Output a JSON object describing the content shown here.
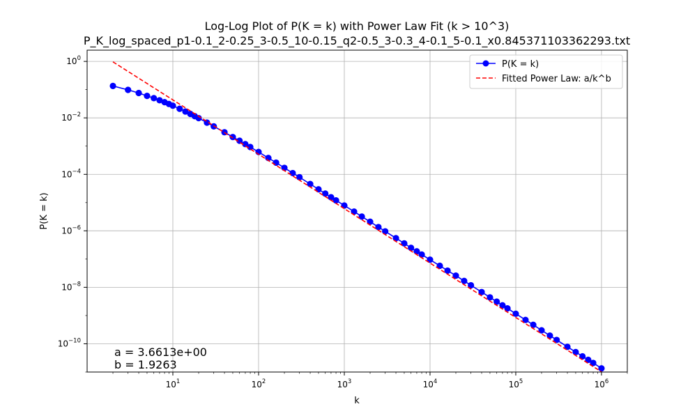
{
  "chart_data": {
    "type": "line",
    "title": "Log-Log Plot of P(K = k) with Power Law Fit (k > 10^3)",
    "subtitle": "P_K_log_spaced_p1-0.1_2-0.25_3-0.5_10-0.15_q2-0.5_3-0.3_4-0.1_5-0.1_x0.845371103362293.txt",
    "xlabel": "k",
    "ylabel": "P(K = k)",
    "xscale": "log",
    "yscale": "log",
    "xlim": [
      1.0,
      2000000
    ],
    "ylim": [
      1e-11,
      2.5
    ],
    "x_ticks": [
      {
        "base": "10",
        "exp": "1"
      },
      {
        "base": "10",
        "exp": "2"
      },
      {
        "base": "10",
        "exp": "3"
      },
      {
        "base": "10",
        "exp": "4"
      },
      {
        "base": "10",
        "exp": "5"
      },
      {
        "base": "10",
        "exp": "6"
      }
    ],
    "x_tick_values": [
      10,
      100,
      1000,
      10000,
      100000,
      1000000
    ],
    "y_ticks": [
      {
        "base": "10",
        "exp": "−10"
      },
      {
        "base": "10",
        "exp": "−8"
      },
      {
        "base": "10",
        "exp": "−6"
      },
      {
        "base": "10",
        "exp": "−4"
      },
      {
        "base": "10",
        "exp": "−2"
      },
      {
        "base": "10",
        "exp": "0"
      }
    ],
    "y_tick_values": [
      1e-10,
      1e-08,
      1e-06,
      0.0001,
      0.01,
      1
    ],
    "grid": true,
    "legend_position": "top-right",
    "series": [
      {
        "name": "P(K = k)",
        "color": "#0000ff",
        "style": "line-with-markers",
        "points": [
          [
            2,
            0.135
          ],
          [
            3,
            0.098
          ],
          [
            4,
            0.076
          ],
          [
            5,
            0.06
          ],
          [
            6,
            0.05
          ],
          [
            7,
            0.042
          ],
          [
            8,
            0.036
          ],
          [
            9,
            0.031
          ],
          [
            10,
            0.027
          ],
          [
            12,
            0.021
          ],
          [
            14,
            0.0168
          ],
          [
            16,
            0.0138
          ],
          [
            18,
            0.0115
          ],
          [
            20,
            0.0098
          ],
          [
            25,
            0.0068
          ],
          [
            30,
            0.005
          ],
          [
            40,
            0.0031
          ],
          [
            50,
            0.0021
          ],
          [
            60,
            0.00155
          ],
          [
            70,
            0.00118
          ],
          [
            80,
            0.00093
          ],
          [
            100,
            0.00062
          ],
          [
            130,
            0.00038
          ],
          [
            160,
            0.00026
          ],
          [
            200,
            0.00017
          ],
          [
            250,
            0.000111
          ],
          [
            300,
            7.9e-05
          ],
          [
            400,
            4.55e-05
          ],
          [
            500,
            2.95e-05
          ],
          [
            600,
            2.08e-05
          ],
          [
            700,
            1.55e-05
          ],
          [
            800,
            1.2e-05
          ],
          [
            1000,
            7.9e-06
          ],
          [
            1300,
            4.8e-06
          ],
          [
            1600,
            3.2e-06
          ],
          [
            2000,
            2.1e-06
          ],
          [
            2500,
            1.36e-06
          ],
          [
            3000,
            9.6e-07
          ],
          [
            4000,
            5.5e-07
          ],
          [
            5000,
            3.6e-07
          ],
          [
            6000,
            2.5e-07
          ],
          [
            7000,
            1.88e-07
          ],
          [
            8000,
            1.45e-07
          ],
          [
            10000,
            9.5e-08
          ],
          [
            13000,
            5.8e-08
          ],
          [
            16000,
            3.9e-08
          ],
          [
            20000,
            2.6e-08
          ],
          [
            25000,
            1.68e-08
          ],
          [
            30000,
            1.18e-08
          ],
          [
            40000,
            6.8e-09
          ],
          [
            50000,
            4.4e-09
          ],
          [
            60000,
            3.1e-09
          ],
          [
            70000,
            2.3e-09
          ],
          [
            80000,
            1.8e-09
          ],
          [
            100000,
            1.16e-09
          ],
          [
            130000,
            7e-10
          ],
          [
            160000,
            4.7e-10
          ],
          [
            200000,
            3e-10
          ],
          [
            250000,
            1.95e-10
          ],
          [
            300000,
            1.37e-10
          ],
          [
            400000,
            7.8e-11
          ],
          [
            500000,
            5.1e-11
          ],
          [
            600000,
            3.6e-11
          ],
          [
            700000,
            2.7e-11
          ],
          [
            800000,
            2.1e-11
          ],
          [
            1000000,
            1.35e-11
          ]
        ]
      },
      {
        "name": "Fitted Power Law: a/k^b",
        "color": "#ff0000",
        "style": "dashed-line",
        "a": 3.6613,
        "b": 1.9263,
        "x_range": [
          2,
          1000000
        ]
      }
    ],
    "annotations": {
      "a_text": "a = 3.6613e+00",
      "b_text": "b = 1.9263"
    }
  }
}
